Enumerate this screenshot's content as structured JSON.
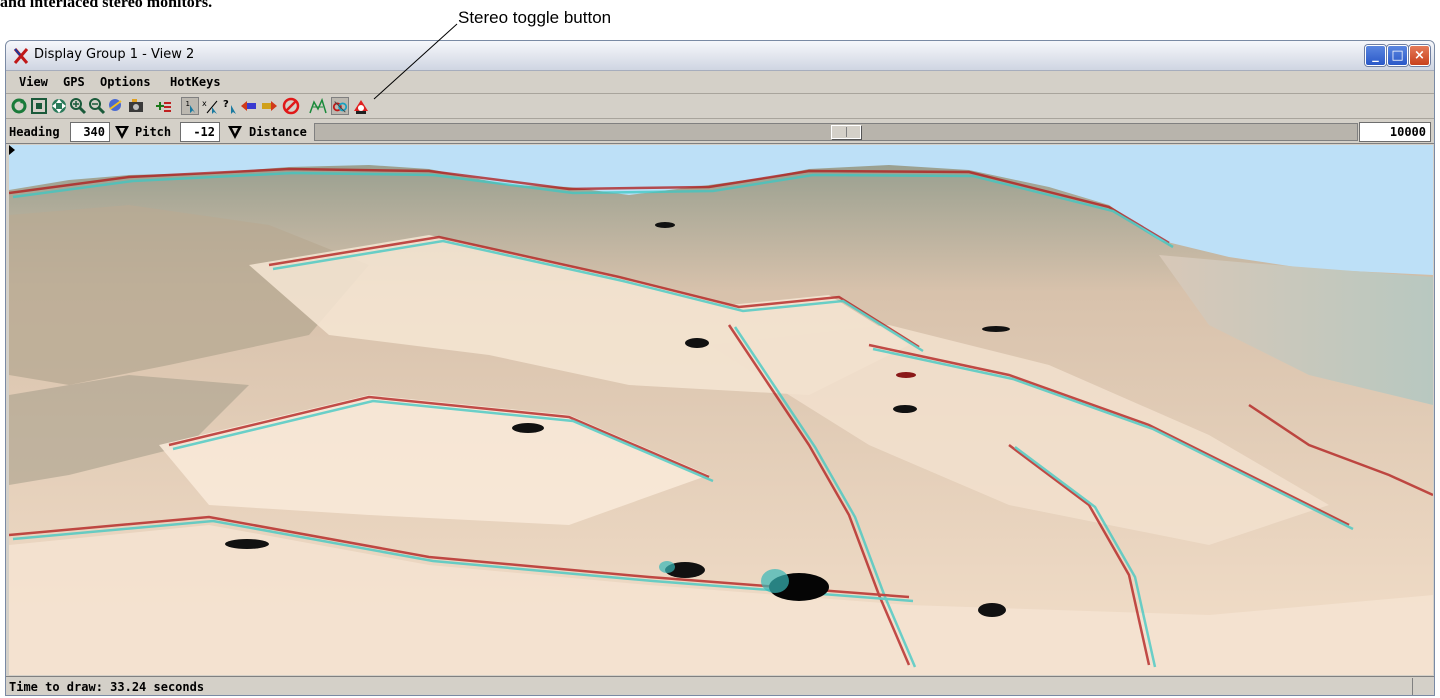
{
  "callout": {
    "label": "Stereo toggle button",
    "partial_caption": "and interlaced stereo monitors."
  },
  "window": {
    "title": "Display Group 1 - View 2"
  },
  "menu": [
    "View",
    "GPS",
    "Options",
    "HotKeys"
  ],
  "toolbar": {
    "icons": [
      "redraw-icon",
      "full-view-icon",
      "pan-icon",
      "zoom-in-icon",
      "zoom-out-icon",
      "zoom-box-icon",
      "snapshot-icon",
      "add-layer-icon",
      "select-icon",
      "measure-icon",
      "query-icon",
      "previous-view-icon",
      "next-view-icon",
      "cancel-icon",
      "terrain-icon",
      "stereo-toggle-icon",
      "viewer-icon"
    ],
    "pressed": [
      "select-icon",
      "stereo-toggle-icon"
    ]
  },
  "controls": {
    "heading_label": "Heading",
    "heading_value": "340",
    "pitch_label": "Pitch",
    "pitch_value": "-12",
    "distance_label": "Distance",
    "distance_value": "10000",
    "slider_position": 0.51
  },
  "status": {
    "text": "Time to draw: 33.24 seconds"
  },
  "colors": {
    "sky": "#bde0f7",
    "terrain": "#f0dcc8",
    "anaglyph_red": "#b01818",
    "anaglyph_cyan": "#3cc8c4",
    "window_face": "#d4d0c8",
    "close_button": "#d85a30",
    "title_button": "#3a68d4"
  }
}
